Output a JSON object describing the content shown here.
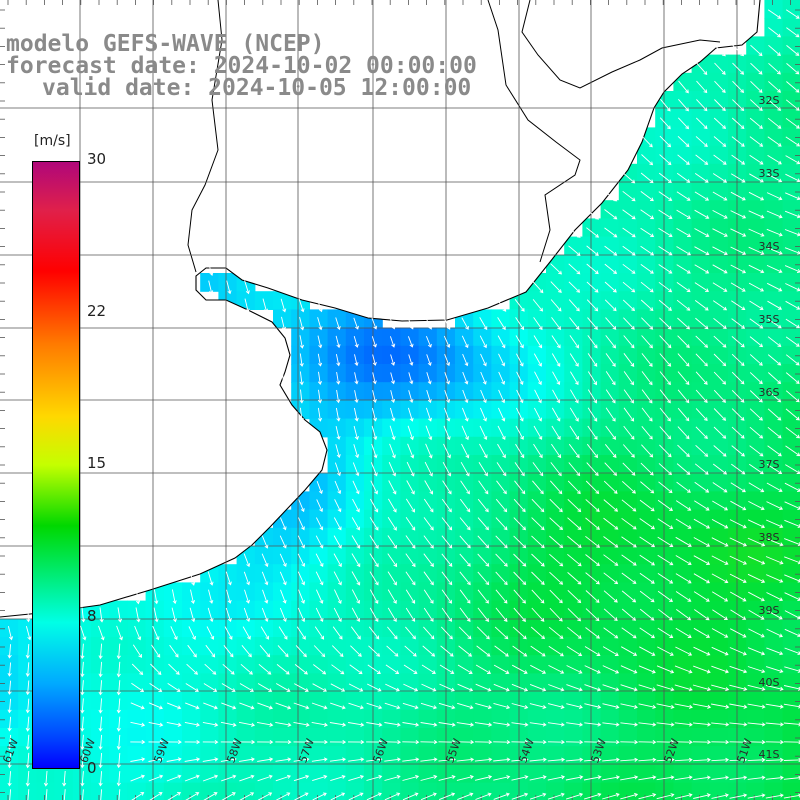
{
  "title": {
    "model": "modelo GEFS-WAVE (NCEP)",
    "forecast": "forecast date: 2024-10-02 00:00:00",
    "valid": "valid date: 2024-10-05 12:00:00"
  },
  "colorbar": {
    "unit": "[m/s]",
    "ticks": [
      "30",
      "22",
      "15",
      "8",
      "0"
    ],
    "colors": [
      "#0000ff",
      "#0044ff",
      "#00aaff",
      "#00ffe6",
      "#00d800",
      "#c4ff00",
      "#ffd800",
      "#ff7a00",
      "#ff0000",
      "#e0204a",
      "#b0077a"
    ]
  },
  "map": {
    "land_color": "#ffffff",
    "coast_color": "#000000",
    "grid_color": "#555555",
    "arrow_color": "#ffffff",
    "lat_labels": [
      "32S",
      "33S",
      "34S",
      "35S",
      "36S",
      "37S",
      "38S",
      "39S",
      "40S",
      "41S"
    ],
    "lon_labels": [
      "61W",
      "60W",
      "59W",
      "58W",
      "57W",
      "56W",
      "55W",
      "54W",
      "53W",
      "52W",
      "51W"
    ]
  }
}
